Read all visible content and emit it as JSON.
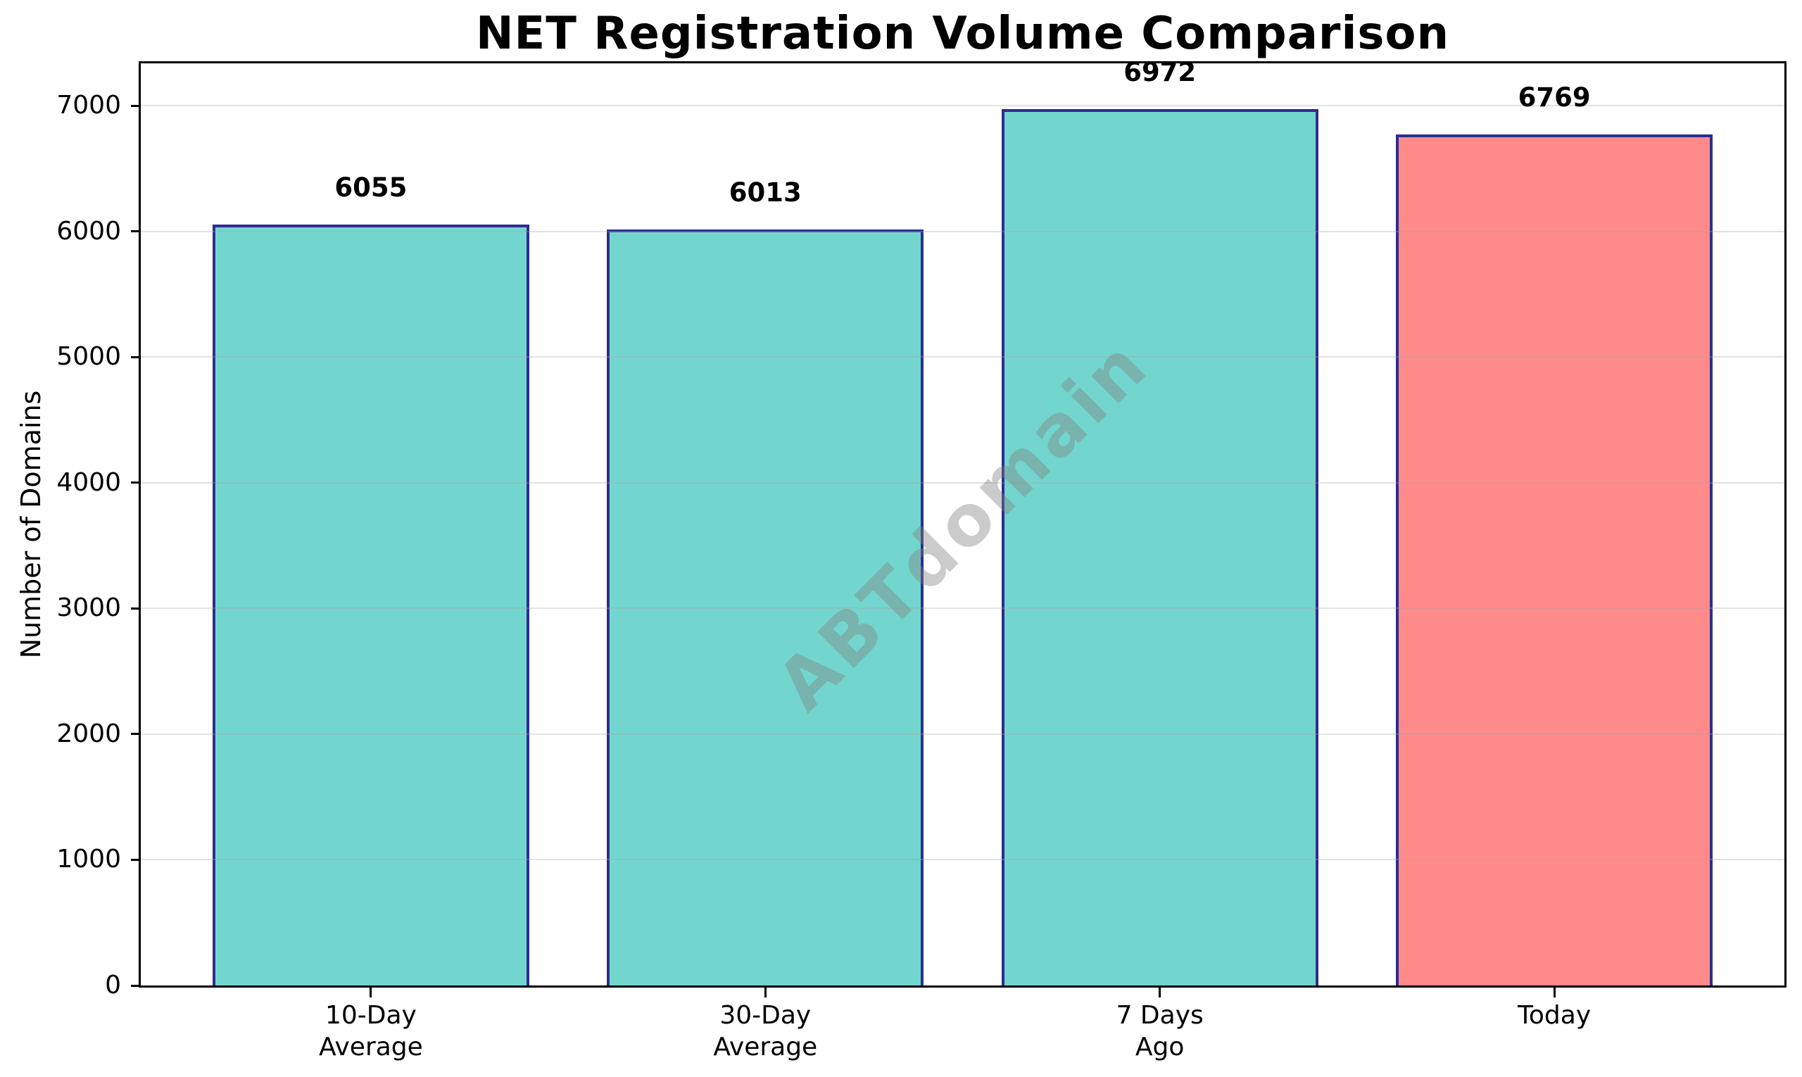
{
  "chart_data": {
    "type": "bar",
    "title": "NET Registration Volume Comparison",
    "xlabel": "",
    "ylabel": "Number of Domains",
    "categories": [
      "10-Day Average",
      "30-Day Average",
      "7 Days Ago",
      "Today"
    ],
    "category_lines": [
      [
        "10-Day",
        "Average"
      ],
      [
        "30-Day",
        "Average"
      ],
      [
        "7 Days",
        "Ago"
      ],
      [
        "Today"
      ]
    ],
    "values": [
      6055,
      6013,
      6972,
      6769
    ],
    "value_labels": [
      "6055",
      "6013",
      "6972",
      "6769"
    ],
    "bar_colors": [
      "#73d6ce",
      "#73d6ce",
      "#73d6ce",
      "#ff8a8a"
    ],
    "bar_edge_color": "#2e2d8f",
    "ylim": [
      0,
      7336
    ],
    "yticks": [
      0,
      1000,
      2000,
      3000,
      4000,
      5000,
      6000,
      7000
    ],
    "grid": true,
    "legend_position": "none",
    "watermark": {
      "text": "ABTdomain",
      "rotation_deg": -45,
      "color": "#808080",
      "opacity": 0.4
    },
    "colors": {
      "background": "#ffffff",
      "spine": "#000000",
      "gridline": "#e8e8e8",
      "text": "#000000"
    }
  }
}
